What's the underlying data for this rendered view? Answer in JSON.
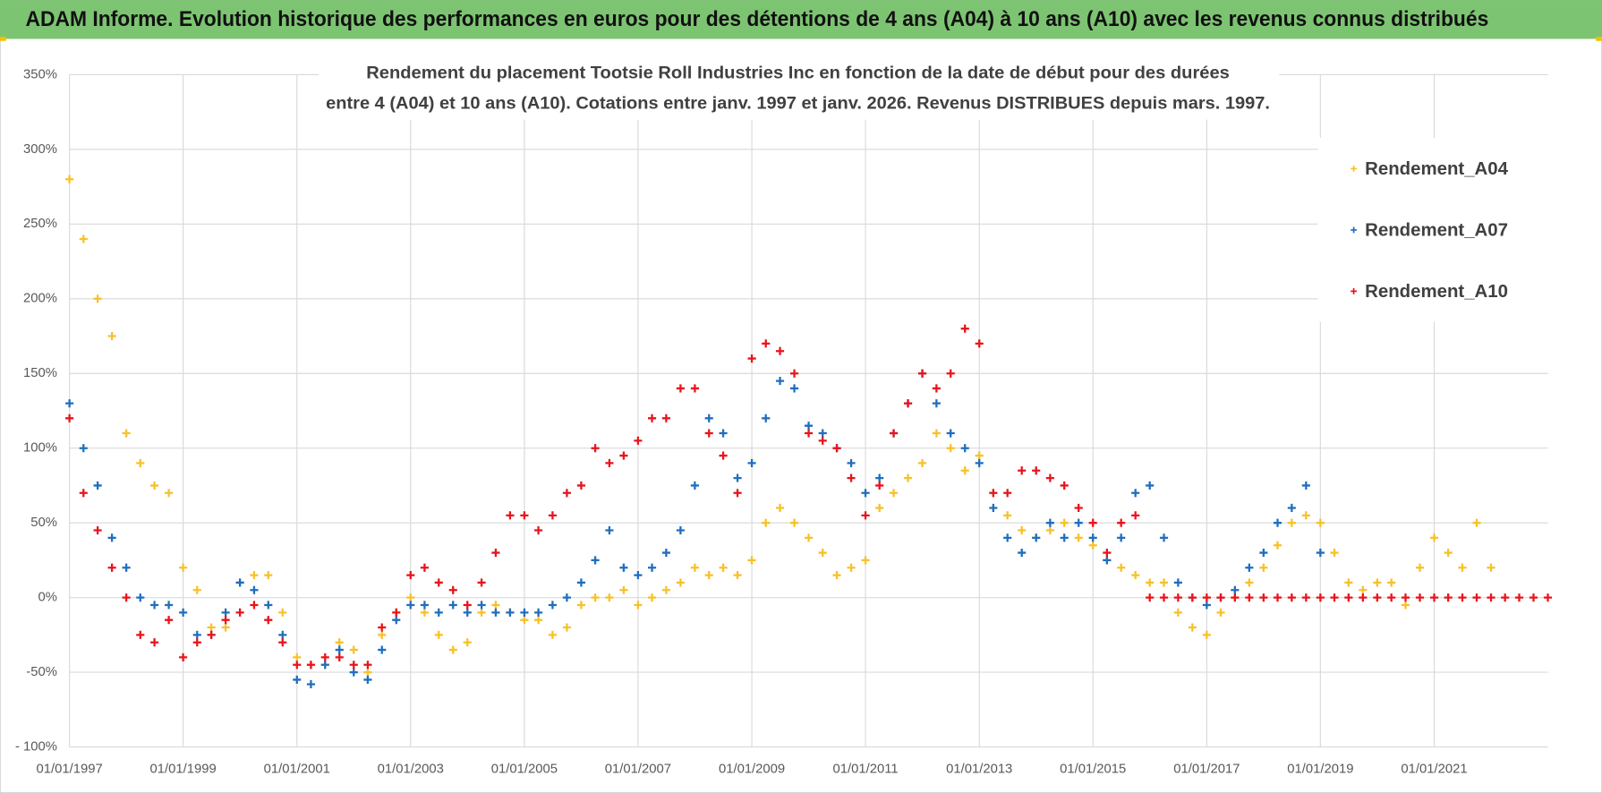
{
  "chart_data": {
    "type": "scatter",
    "header": "ADAM Informe. Evolution historique des performances en euros pour des détentions de 4 ans (A04) à 10 ans (A10) avec les revenus connus distribués",
    "title": "Rendement du placement Tootsie Roll Industries Inc en fonction de la date de début pour des durées",
    "subtitle": "entre 4 (A04) et 10 ans (A10).  Cotations entre janv. 1997 et janv. 2026.  Revenus DISTRIBUES depuis mars. 1997.",
    "xlim": [
      "1997-01-01",
      "2023-01-01"
    ],
    "xticks": [
      {
        "value": "1997-01-01",
        "label": "01/01/1997"
      },
      {
        "value": "1999-01-01",
        "label": "01/01/1999"
      },
      {
        "value": "2001-01-01",
        "label": "01/01/2001"
      },
      {
        "value": "2003-01-01",
        "label": "01/01/2003"
      },
      {
        "value": "2005-01-01",
        "label": "01/01/2005"
      },
      {
        "value": "2007-01-01",
        "label": "01/01/2007"
      },
      {
        "value": "2009-01-01",
        "label": "01/01/2009"
      },
      {
        "value": "2011-01-01",
        "label": "01/01/2011"
      },
      {
        "value": "2013-01-01",
        "label": "01/01/2013"
      },
      {
        "value": "2015-01-01",
        "label": "01/01/2015"
      },
      {
        "value": "2017-01-01",
        "label": "01/01/2017"
      },
      {
        "value": "2019-01-01",
        "label": "01/01/2019"
      },
      {
        "value": "2021-01-01",
        "label": "01/01/2021"
      }
    ],
    "ylim": [
      -100,
      350
    ],
    "yticks": [
      {
        "value": -100,
        "label": "- 100%"
      },
      {
        "value": -50,
        "label": "-50%"
      },
      {
        "value": 0,
        "label": "0%"
      },
      {
        "value": 50,
        "label": "50%"
      },
      {
        "value": 100,
        "label": "100%"
      },
      {
        "value": 150,
        "label": "150%"
      },
      {
        "value": 200,
        "label": "200%"
      },
      {
        "value": 250,
        "label": "250%"
      },
      {
        "value": 300,
        "label": "300%"
      },
      {
        "value": 350,
        "label": "350%"
      }
    ],
    "grid": true,
    "legend": "upper right",
    "series": [
      {
        "name": "Rendement_A04",
        "color": "#f7c12a",
        "x": [
          "1997-01-01",
          "1997-04-01",
          "1997-07-01",
          "1997-10-01",
          "1998-01-01",
          "1998-04-01",
          "1998-07-01",
          "1998-10-01",
          "1999-01-01",
          "1999-04-01",
          "1999-07-01",
          "1999-10-01",
          "2000-01-01",
          "2000-04-01",
          "2000-07-01",
          "2000-10-01",
          "2001-01-01",
          "2001-04-01",
          "2001-07-01",
          "2001-10-01",
          "2002-01-01",
          "2002-04-01",
          "2002-07-01",
          "2002-10-01",
          "2003-01-01",
          "2003-04-01",
          "2003-07-01",
          "2003-10-01",
          "2004-01-01",
          "2004-04-01",
          "2004-07-01",
          "2004-10-01",
          "2005-01-01",
          "2005-04-01",
          "2005-07-01",
          "2005-10-01",
          "2006-01-01",
          "2006-04-01",
          "2006-07-01",
          "2006-10-01",
          "2007-01-01",
          "2007-04-01",
          "2007-07-01",
          "2007-10-01",
          "2008-01-01",
          "2008-04-01",
          "2008-07-01",
          "2008-10-01",
          "2009-01-01",
          "2009-04-01",
          "2009-07-01",
          "2009-10-01",
          "2010-01-01",
          "2010-04-01",
          "2010-07-01",
          "2010-10-01",
          "2011-01-01",
          "2011-04-01",
          "2011-07-01",
          "2011-10-01",
          "2012-01-01",
          "2012-04-01",
          "2012-07-01",
          "2012-10-01",
          "2013-01-01",
          "2013-04-01",
          "2013-07-01",
          "2013-10-01",
          "2014-01-01",
          "2014-04-01",
          "2014-07-01",
          "2014-10-01",
          "2015-01-01",
          "2015-04-01",
          "2015-07-01",
          "2015-10-01",
          "2016-01-01",
          "2016-04-01",
          "2016-07-01",
          "2016-10-01",
          "2017-01-01",
          "2017-04-01",
          "2017-07-01",
          "2017-10-01",
          "2018-01-01",
          "2018-04-01",
          "2018-07-01",
          "2018-10-01",
          "2019-01-01",
          "2019-04-01",
          "2019-07-01",
          "2019-10-01",
          "2020-01-01",
          "2020-04-01",
          "2020-07-01",
          "2020-10-01",
          "2021-01-01",
          "2021-04-01",
          "2021-07-01",
          "2021-10-01",
          "2022-01-01"
        ],
        "values": [
          280,
          240,
          200,
          175,
          110,
          90,
          75,
          70,
          20,
          5,
          -20,
          -20,
          10,
          15,
          15,
          -10,
          -40,
          -45,
          -45,
          -30,
          -35,
          -50,
          -25,
          -10,
          0,
          -10,
          -25,
          -35,
          -30,
          -10,
          -5,
          -10,
          -15,
          -15,
          -25,
          -20,
          -5,
          0,
          0,
          5,
          -5,
          0,
          5,
          10,
          20,
          15,
          20,
          15,
          25,
          50,
          60,
          50,
          40,
          30,
          15,
          20,
          25,
          60,
          70,
          80,
          90,
          110,
          100,
          85,
          95,
          70,
          55,
          45,
          40,
          45,
          50,
          40,
          35,
          25,
          20,
          15,
          10,
          10,
          -10,
          -20,
          -25,
          -10,
          0,
          10,
          20,
          35,
          50,
          55,
          50,
          30,
          10,
          5,
          10,
          10,
          -5,
          20,
          40,
          30,
          20,
          50,
          20
        ]
      },
      {
        "name": "Rendement_A07",
        "color": "#1f6ebf",
        "x": [
          "1997-01-01",
          "1997-04-01",
          "1997-07-01",
          "1997-10-01",
          "1998-01-01",
          "1998-04-01",
          "1998-07-01",
          "1998-10-01",
          "1999-01-01",
          "1999-04-01",
          "1999-07-01",
          "1999-10-01",
          "2000-01-01",
          "2000-04-01",
          "2000-07-01",
          "2000-10-01",
          "2001-01-01",
          "2001-04-01",
          "2001-07-01",
          "2001-10-01",
          "2002-01-01",
          "2002-04-01",
          "2002-07-01",
          "2002-10-01",
          "2003-01-01",
          "2003-04-01",
          "2003-07-01",
          "2003-10-01",
          "2004-01-01",
          "2004-04-01",
          "2004-07-01",
          "2004-10-01",
          "2005-01-01",
          "2005-04-01",
          "2005-07-01",
          "2005-10-01",
          "2006-01-01",
          "2006-04-01",
          "2006-07-01",
          "2006-10-01",
          "2007-01-01",
          "2007-04-01",
          "2007-07-01",
          "2007-10-01",
          "2008-01-01",
          "2008-04-01",
          "2008-07-01",
          "2008-10-01",
          "2009-01-01",
          "2009-04-01",
          "2009-07-01",
          "2009-10-01",
          "2010-01-01",
          "2010-04-01",
          "2010-07-01",
          "2010-10-01",
          "2011-01-01",
          "2011-04-01",
          "2011-07-01",
          "2011-10-01",
          "2012-01-01",
          "2012-04-01",
          "2012-07-01",
          "2012-10-01",
          "2013-01-01",
          "2013-04-01",
          "2013-07-01",
          "2013-10-01",
          "2014-01-01",
          "2014-04-01",
          "2014-07-01",
          "2014-10-01",
          "2015-01-01",
          "2015-04-01",
          "2015-07-01",
          "2015-10-01",
          "2016-01-01",
          "2016-04-01",
          "2016-07-01",
          "2016-10-01",
          "2017-01-01",
          "2017-04-01",
          "2017-07-01",
          "2017-10-01",
          "2018-01-01",
          "2018-04-01",
          "2018-07-01",
          "2018-10-01",
          "2019-01-01"
        ],
        "values": [
          130,
          100,
          75,
          40,
          20,
          0,
          -5,
          -5,
          -10,
          -25,
          -25,
          -10,
          10,
          5,
          -5,
          -25,
          -55,
          -58,
          -45,
          -35,
          -50,
          -55,
          -35,
          -15,
          -5,
          -5,
          -10,
          -5,
          -10,
          -5,
          -10,
          -10,
          -10,
          -10,
          -5,
          0,
          10,
          25,
          45,
          20,
          15,
          20,
          30,
          45,
          75,
          120,
          110,
          80,
          90,
          120,
          145,
          140,
          115,
          110,
          100,
          90,
          70,
          80,
          110,
          130,
          150,
          130,
          110,
          100,
          90,
          60,
          40,
          30,
          40,
          50,
          40,
          50,
          40,
          25,
          40,
          70,
          75,
          40,
          10,
          0,
          -5,
          0,
          5,
          20,
          30,
          50,
          60,
          75,
          30
        ]
      },
      {
        "name": "Rendement_A10",
        "color": "#e8141c",
        "x": [
          "1997-01-01",
          "1997-04-01",
          "1997-07-01",
          "1997-10-01",
          "1998-01-01",
          "1998-04-01",
          "1998-07-01",
          "1998-10-01",
          "1999-01-01",
          "1999-04-01",
          "1999-07-01",
          "1999-10-01",
          "2000-01-01",
          "2000-04-01",
          "2000-07-01",
          "2000-10-01",
          "2001-01-01",
          "2001-04-01",
          "2001-07-01",
          "2001-10-01",
          "2002-01-01",
          "2002-04-01",
          "2002-07-01",
          "2002-10-01",
          "2003-01-01",
          "2003-04-01",
          "2003-07-01",
          "2003-10-01",
          "2004-01-01",
          "2004-04-01",
          "2004-07-01",
          "2004-10-01",
          "2005-01-01",
          "2005-04-01",
          "2005-07-01",
          "2005-10-01",
          "2006-01-01",
          "2006-04-01",
          "2006-07-01",
          "2006-10-01",
          "2007-01-01",
          "2007-04-01",
          "2007-07-01",
          "2007-10-01",
          "2008-01-01",
          "2008-04-01",
          "2008-07-01",
          "2008-10-01",
          "2009-01-01",
          "2009-04-01",
          "2009-07-01",
          "2009-10-01",
          "2010-01-01",
          "2010-04-01",
          "2010-07-01",
          "2010-10-01",
          "2011-01-01",
          "2011-04-01",
          "2011-07-01",
          "2011-10-01",
          "2012-01-01",
          "2012-04-01",
          "2012-07-01",
          "2012-10-01",
          "2013-01-01",
          "2013-04-01",
          "2013-07-01",
          "2013-10-01",
          "2014-01-01",
          "2014-04-01",
          "2014-07-01",
          "2014-10-01",
          "2015-01-01",
          "2015-04-01",
          "2015-07-01",
          "2015-10-01",
          "2016-01-01",
          "2016-04-01",
          "2016-07-01",
          "2016-10-01",
          "2017-01-01",
          "2017-04-01",
          "2017-07-01",
          "2017-10-01",
          "2018-01-01",
          "2018-04-01",
          "2018-07-01",
          "2018-10-01",
          "2019-01-01",
          "2019-04-01",
          "2019-07-01",
          "2019-10-01",
          "2020-01-01",
          "2020-04-01",
          "2020-07-01",
          "2020-10-01",
          "2021-01-01",
          "2021-04-01",
          "2021-07-01",
          "2021-10-01",
          "2022-01-01",
          "2022-04-01",
          "2022-07-01",
          "2022-10-01",
          "2023-01-01"
        ],
        "values": [
          120,
          70,
          45,
          20,
          0,
          -25,
          -30,
          -15,
          -40,
          -30,
          -25,
          -15,
          -10,
          -5,
          -15,
          -30,
          -45,
          -45,
          -40,
          -40,
          -45,
          -45,
          -20,
          -10,
          15,
          20,
          10,
          5,
          -5,
          10,
          30,
          55,
          55,
          45,
          55,
          70,
          75,
          100,
          90,
          95,
          105,
          120,
          120,
          140,
          140,
          110,
          95,
          70,
          160,
          170,
          165,
          150,
          110,
          105,
          100,
          80,
          55,
          75,
          110,
          130,
          150,
          140,
          150,
          180,
          170,
          70,
          70,
          85,
          85,
          80,
          75,
          60,
          50,
          30,
          50,
          55,
          0,
          0,
          0,
          0,
          0,
          0,
          0,
          0,
          0,
          0,
          0,
          0,
          0,
          0,
          0,
          0,
          0,
          0,
          0,
          0,
          0,
          0,
          0,
          0,
          0,
          0,
          0,
          0,
          0
        ]
      }
    ]
  }
}
